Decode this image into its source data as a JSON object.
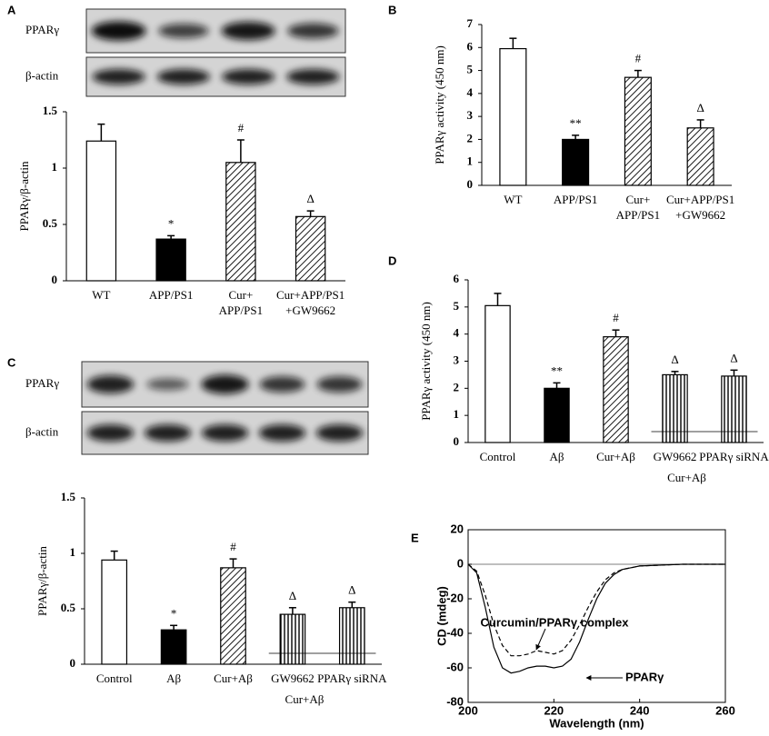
{
  "blots": [
    [
      "PPARγ",
      "β-actin"
    ],
    [
      "PPARγ",
      "β-actin"
    ]
  ],
  "chart_data": [
    {
      "panel": "A",
      "type": "bar",
      "ylabel": "PPARγ/β-actin",
      "categories": [
        "WT",
        "APP/PS1",
        [
          "Cur+",
          "APP/PS1"
        ],
        [
          "Cur+APP/PS1",
          "+GW9662"
        ]
      ],
      "values": [
        1.24,
        0.37,
        1.05,
        0.57
      ],
      "errors": [
        0.15,
        0.03,
        0.2,
        0.05
      ],
      "markers": [
        null,
        "*",
        "#",
        "Δ"
      ],
      "patterns": [
        "open",
        "solid",
        "diagonal",
        "diagonal"
      ],
      "ylim": [
        0,
        1.5
      ],
      "yticks": [
        0,
        0.5,
        1,
        1.5
      ]
    },
    {
      "panel": "B",
      "type": "bar",
      "ylabel": "PPARγ activity (450 nm)",
      "categories": [
        "WT",
        "APP/PS1",
        [
          "Cur+",
          "APP/PS1"
        ],
        [
          "Cur+APP/PS1",
          "+GW9662"
        ]
      ],
      "values": [
        5.95,
        2.0,
        4.7,
        2.5
      ],
      "errors": [
        0.45,
        0.18,
        0.3,
        0.35
      ],
      "markers": [
        null,
        "**",
        "#",
        "Δ"
      ],
      "patterns": [
        "open",
        "solid",
        "diagonal",
        "diagonal"
      ],
      "ylim": [
        0,
        7
      ],
      "yticks": [
        0,
        1,
        2,
        3,
        4,
        5,
        6,
        7
      ]
    },
    {
      "panel": "C",
      "type": "bar",
      "ylabel": "PPARγ/β-actin",
      "categories": [
        "Control",
        "Aβ",
        "Cur+Aβ",
        "GW9662",
        "PPARγ siRNA"
      ],
      "group_label": "Cur+Aβ",
      "values": [
        0.94,
        0.31,
        0.87,
        0.45,
        0.51
      ],
      "errors": [
        0.08,
        0.04,
        0.08,
        0.06,
        0.05
      ],
      "markers": [
        null,
        "*",
        "#",
        "Δ",
        "Δ"
      ],
      "patterns": [
        "open",
        "solid",
        "diagonal",
        "vertical",
        "vertical"
      ],
      "ylim": [
        0,
        1.5
      ],
      "yticks": [
        0,
        0.5,
        1,
        1.5
      ]
    },
    {
      "panel": "D",
      "type": "bar",
      "ylabel": "PPARγ activity (450 nm)",
      "categories": [
        "Control",
        "Aβ",
        "Cur+Aβ",
        "GW9662",
        "PPARγ siRNA"
      ],
      "group_label": "Cur+Aβ",
      "values": [
        5.05,
        2.0,
        3.9,
        2.5,
        2.45
      ],
      "errors": [
        0.45,
        0.2,
        0.25,
        0.12,
        0.22
      ],
      "markers": [
        null,
        "**",
        "#",
        "Δ",
        "Δ"
      ],
      "patterns": [
        "open",
        "solid",
        "diagonal",
        "vertical",
        "vertical"
      ],
      "ylim": [
        0,
        6
      ],
      "yticks": [
        0,
        1,
        2,
        3,
        4,
        5,
        6
      ]
    },
    {
      "panel": "E",
      "type": "line",
      "xlabel": "Wavelength (nm)",
      "ylabel": "CD (mdeg)",
      "x": [
        200,
        202,
        204,
        206,
        208,
        210,
        212,
        214,
        216,
        218,
        220,
        222,
        224,
        226,
        228,
        230,
        232,
        234,
        236,
        238,
        240,
        245,
        250,
        255,
        260
      ],
      "series": [
        {
          "name": "PPARγ",
          "color": "#000000",
          "dash": "solid",
          "values": [
            0,
            -5,
            -25,
            -48,
            -60,
            -63,
            -62,
            -60,
            -59,
            -59,
            -60,
            -59,
            -55,
            -45,
            -32,
            -20,
            -11,
            -6,
            -3,
            -2,
            -1,
            -0.5,
            0,
            0,
            0
          ]
        },
        {
          "name": "Curcumin/PPARγ complex",
          "color": "#000000",
          "dash": "dashed",
          "values": [
            0,
            -4,
            -18,
            -35,
            -47,
            -53,
            -53,
            -52,
            -50,
            -51,
            -52,
            -50,
            -44,
            -35,
            -25,
            -16,
            -9,
            -5,
            -3,
            -2,
            -1,
            -0.5,
            0,
            0,
            0
          ]
        }
      ],
      "xlim": [
        200,
        260
      ],
      "xticks": [
        200,
        220,
        240,
        260
      ],
      "ylim": [
        -80,
        20
      ],
      "yticks": [
        -80,
        -60,
        -40,
        -20,
        0,
        20
      ]
    }
  ]
}
